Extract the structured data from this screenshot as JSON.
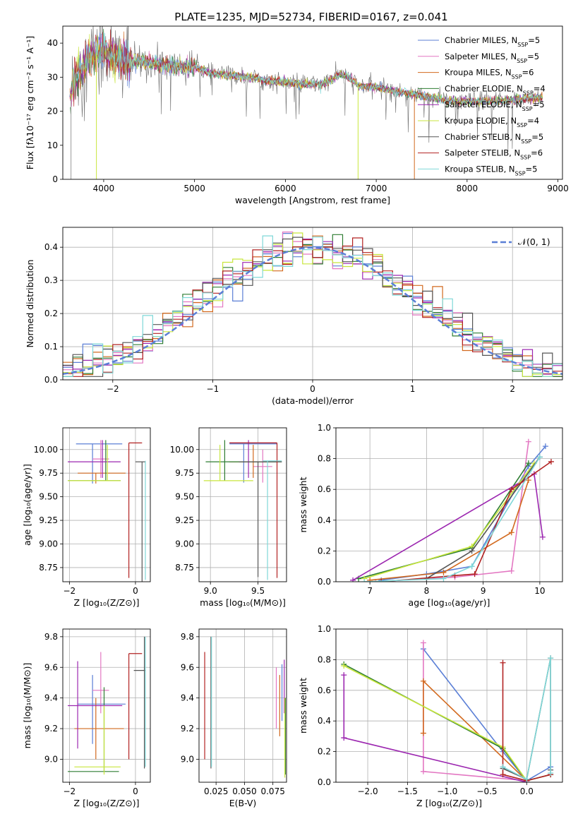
{
  "title": "PLATE=1235, MJD=52734, FIBERID=0167, z=0.041",
  "colors": [
    "#5b7fd6",
    "#e377c2",
    "#d2691e",
    "#2e7d32",
    "#9c27b0",
    "#c8e63c",
    "#555555",
    "#b22222",
    "#7fd8d8"
  ],
  "chart_data": [
    {
      "type": "line",
      "name": "spectrum",
      "xlabel": "wavelength [Angstrom, rest frame]",
      "ylabel": "Flux [fλ10⁻¹⁷ erg cm⁻² s⁻¹ A⁻¹]",
      "xlim": [
        3550,
        9050
      ],
      "ylim": [
        0,
        45
      ],
      "xticks": [
        4000,
        5000,
        6000,
        7000,
        8000,
        9000
      ],
      "yticks": [
        0,
        10,
        20,
        30,
        40
      ],
      "grid": false,
      "legend": "top-right",
      "series": [
        {
          "name": "Chabrier MILES, N_SSP=5",
          "label_html": "Chabrier MILES, N<tspan baseline-shift=\"sub\" font-size=\"8\">SSP</tspan>=5"
        },
        {
          "name": "Salpeter MILES, N_SSP=5",
          "label_html": "Salpeter MILES, N<tspan baseline-shift=\"sub\" font-size=\"8\">SSP</tspan>=5"
        },
        {
          "name": "Kroupa MILES, N_SSP=6",
          "label_html": "Kroupa MILES, N<tspan baseline-shift=\"sub\" font-size=\"8\">SSP</tspan>=6"
        },
        {
          "name": "Chabrier ELODIE, N_SSP=4",
          "label_html": "Chabrier ELODIE, N<tspan baseline-shift=\"sub\" font-size=\"8\">SSP</tspan>=4"
        },
        {
          "name": "Salpeter ELODIE, N_SSP=5",
          "label_html": "Salpeter ELODIE, N<tspan baseline-shift=\"sub\" font-size=\"8\">SSP</tspan>=5"
        },
        {
          "name": "Kroupa ELODIE, N_SSP=4",
          "label_html": "Kroupa ELODIE, N<tspan baseline-shift=\"sub\" font-size=\"8\">SSP</tspan>=4"
        },
        {
          "name": "Chabrier STELIB, N_SSP=5",
          "label_html": "Chabrier STELIB, N<tspan baseline-shift=\"sub\" font-size=\"8\">SSP</tspan>=5"
        },
        {
          "name": "Salpeter STELIB, N_SSP=6",
          "label_html": "Salpeter STELIB, N<tspan baseline-shift=\"sub\" font-size=\"8\">SSP</tspan>=6"
        },
        {
          "name": "Kroupa STELIB, N_SSP=5",
          "label_html": "Kroupa STELIB, N<tspan baseline-shift=\"sub\" font-size=\"8\">SSP</tspan>=5"
        }
      ],
      "continuum": [
        [
          3650,
          27
        ],
        [
          3700,
          31
        ],
        [
          3800,
          34
        ],
        [
          3900,
          37
        ],
        [
          4000,
          38
        ],
        [
          4100,
          36
        ],
        [
          4200,
          35
        ],
        [
          4400,
          34.5
        ],
        [
          4600,
          34
        ],
        [
          4800,
          33
        ],
        [
          5000,
          33
        ],
        [
          5200,
          31
        ],
        [
          5400,
          30.5
        ],
        [
          5600,
          30
        ],
        [
          5800,
          29
        ],
        [
          6000,
          28.5
        ],
        [
          6200,
          28
        ],
        [
          6400,
          28
        ],
        [
          6500,
          29
        ],
        [
          6600,
          31
        ],
        [
          6700,
          30
        ],
        [
          6800,
          27.5
        ],
        [
          7000,
          27
        ],
        [
          7200,
          26
        ],
        [
          7400,
          25
        ],
        [
          7600,
          24
        ],
        [
          7800,
          23
        ],
        [
          8000,
          23
        ],
        [
          8200,
          23
        ],
        [
          8400,
          23
        ],
        [
          8600,
          23.5
        ],
        [
          8800,
          24
        ]
      ]
    },
    {
      "type": "histogram",
      "name": "residuals",
      "xlabel": "(data-model)/error",
      "ylabel": "Normed distribution",
      "xlim": [
        -2.5,
        2.5
      ],
      "ylim": [
        0,
        0.46
      ],
      "xticks": [
        -2,
        -1,
        0,
        1,
        2
      ],
      "yticks": [
        0.0,
        0.1,
        0.2,
        0.3,
        0.4
      ],
      "grid": true,
      "legend": "top-right",
      "legend_entry": "𝒩(0, 1)",
      "bins": 50
    },
    {
      "type": "errorbar",
      "name": "age-vs-Z",
      "xlabel": "Z [log₁₀(Z/Z⊙)]",
      "ylabel": "age  [log₁₀(age/yr)]",
      "xlim": [
        -2.2,
        0.45
      ],
      "ylim": [
        8.6,
        10.23
      ],
      "xticks": [
        -2,
        0
      ],
      "yticks": [
        8.75,
        9.0,
        9.25,
        9.5,
        9.75,
        10.0
      ],
      "grid": true,
      "bars": [
        {
          "c": 0,
          "x": -1.3,
          "y": 10.06,
          "xe": [
            -1.8,
            -0.4
          ],
          "ye": [
            9.64,
            10.06
          ]
        },
        {
          "c": 1,
          "x": -1.05,
          "y": 9.9,
          "xe": [
            -1.3,
            -0.8
          ],
          "ye": [
            9.7,
            10.1
          ]
        },
        {
          "c": 2,
          "x": -1.2,
          "y": 9.75,
          "xe": [
            -1.75,
            -0.3
          ],
          "ye": [
            9.64,
            9.75
          ]
        },
        {
          "c": 3,
          "x": -0.9,
          "y": 9.67,
          "xe": [
            -2.05,
            -0.45
          ],
          "ye": [
            9.67,
            10.1
          ]
        },
        {
          "c": 4,
          "x": -1.0,
          "y": 9.87,
          "xe": [
            -2.05,
            -0.45
          ],
          "ye": [
            9.7,
            10.1
          ]
        },
        {
          "c": 5,
          "x": -0.85,
          "y": 9.67,
          "xe": [
            -2.05,
            -0.45
          ],
          "ye": [
            9.67,
            10.05
          ]
        },
        {
          "c": 6,
          "x": 0.2,
          "y": 9.87,
          "xe": [
            0.0,
            0.3
          ],
          "ye": [
            8.6,
            9.87
          ]
        },
        {
          "c": 7,
          "x": -0.2,
          "y": 10.07,
          "xe": [
            -0.2,
            0.2
          ],
          "ye": [
            8.64,
            10.07
          ]
        },
        {
          "c": 8,
          "x": 0.3,
          "y": 9.88,
          "xe": [
            0.3,
            0.3
          ],
          "ye": [
            8.62,
            9.88
          ]
        }
      ]
    },
    {
      "type": "errorbar",
      "name": "age-vs-mass",
      "xlabel": "mass [log₁₀(M/M⊙)]",
      "ylabel": "",
      "xlim": [
        8.88,
        9.8
      ],
      "ylim": [
        8.6,
        10.23
      ],
      "xticks": [
        9.0,
        9.5
      ],
      "yticks": [
        8.75,
        9.0,
        9.25,
        9.5,
        9.75,
        10.0
      ],
      "grid": true,
      "bars": [
        {
          "c": 0,
          "x": 9.35,
          "y": 10.06,
          "xe": [
            9.2,
            9.7
          ],
          "ye": [
            9.65,
            10.06
          ]
        },
        {
          "c": 1,
          "x": 9.55,
          "y": 9.82,
          "xe": [
            9.45,
            9.65
          ],
          "ye": [
            9.65,
            10.0
          ]
        },
        {
          "c": 2,
          "x": 9.45,
          "y": 9.87,
          "xe": [
            9.2,
            9.7
          ],
          "ye": [
            9.7,
            10.05
          ]
        },
        {
          "c": 3,
          "x": 9.15,
          "y": 9.87,
          "xe": [
            8.95,
            9.75
          ],
          "ye": [
            9.67,
            10.1
          ]
        },
        {
          "c": 4,
          "x": 9.4,
          "y": 10.07,
          "xe": [
            9.2,
            9.7
          ],
          "ye": [
            9.7,
            10.1
          ]
        },
        {
          "c": 5,
          "x": 9.1,
          "y": 9.67,
          "xe": [
            8.93,
            9.45
          ],
          "ye": [
            9.67,
            10.05
          ]
        },
        {
          "c": 6,
          "x": 9.5,
          "y": 9.87,
          "xe": [
            9.3,
            9.75
          ],
          "ye": [
            8.65,
            9.87
          ]
        },
        {
          "c": 7,
          "x": 9.7,
          "y": 10.07,
          "xe": [
            9.2,
            9.7
          ],
          "ye": [
            8.64,
            10.07
          ]
        },
        {
          "c": 8,
          "x": 9.6,
          "y": 9.88,
          "xe": [
            9.55,
            9.75
          ],
          "ye": [
            8.62,
            9.88
          ]
        }
      ]
    },
    {
      "type": "line",
      "name": "mass-weight-vs-age",
      "xlabel": "age  [log₁₀(age/yr)]",
      "ylabel": "mass weight",
      "xlim": [
        6.4,
        10.4
      ],
      "ylim": [
        0,
        1
      ],
      "xticks": [
        7,
        8,
        9,
        10
      ],
      "yticks": [
        0.0,
        0.2,
        0.4,
        0.6,
        0.8,
        1.0
      ],
      "grid": true,
      "series": [
        {
          "c": 0,
          "points": [
            [
              7.2,
              0.01
            ],
            [
              8.0,
              0.05
            ],
            [
              8.8,
              0.1
            ],
            [
              9.8,
              0.75
            ],
            [
              10.1,
              0.88
            ]
          ]
        },
        {
          "c": 1,
          "points": [
            [
              7.1,
              0.0
            ],
            [
              8.5,
              0.03
            ],
            [
              9.5,
              0.07
            ],
            [
              9.8,
              0.91
            ]
          ]
        },
        {
          "c": 2,
          "points": [
            [
              7.0,
              0.01
            ],
            [
              8.3,
              0.06
            ],
            [
              9.5,
              0.32
            ],
            [
              9.8,
              0.66
            ]
          ]
        },
        {
          "c": 3,
          "points": [
            [
              6.8,
              0.02
            ],
            [
              8.8,
              0.22
            ],
            [
              9.8,
              0.77
            ]
          ]
        },
        {
          "c": 4,
          "points": [
            [
              6.7,
              0.01
            ],
            [
              9.9,
              0.7
            ],
            [
              10.05,
              0.29
            ]
          ]
        },
        {
          "c": 5,
          "points": [
            [
              6.9,
              0.02
            ],
            [
              8.8,
              0.23
            ],
            [
              9.9,
              0.77
            ]
          ]
        },
        {
          "c": 6,
          "points": [
            [
              8.0,
              0.02
            ],
            [
              8.8,
              0.2
            ],
            [
              10.0,
              0.81
            ]
          ]
        },
        {
          "c": 7,
          "points": [
            [
              7.2,
              0.0
            ],
            [
              8.5,
              0.04
            ],
            [
              8.85,
              0.05
            ],
            [
              9.5,
              0.6
            ],
            [
              10.2,
              0.78
            ]
          ]
        },
        {
          "c": 8,
          "points": [
            [
              6.9,
              0.0
            ],
            [
              8.3,
              0.02
            ],
            [
              8.8,
              0.1
            ],
            [
              10.0,
              0.81
            ]
          ]
        }
      ]
    },
    {
      "type": "errorbar",
      "name": "mass-vs-Z",
      "xlabel": "Z [log₁₀(Z/Z⊙)]",
      "ylabel": "mass [log₁₀(M/M⊙)]",
      "xlim": [
        -2.2,
        0.45
      ],
      "ylim": [
        8.85,
        9.85
      ],
      "xticks": [
        -2,
        0
      ],
      "yticks": [
        9.0,
        9.2,
        9.4,
        9.6,
        9.8
      ],
      "grid": true,
      "bars": [
        {
          "c": 0,
          "x": -1.3,
          "y": 9.36,
          "xe": [
            -1.75,
            -0.3
          ],
          "ye": [
            9.1,
            9.55
          ]
        },
        {
          "c": 1,
          "x": -1.05,
          "y": 9.45,
          "xe": [
            -1.3,
            -0.8
          ],
          "ye": [
            9.3,
            9.7
          ]
        },
        {
          "c": 2,
          "x": -1.2,
          "y": 9.2,
          "xe": [
            -1.85,
            -0.35
          ],
          "ye": [
            9.0,
            9.4
          ]
        },
        {
          "c": 3,
          "x": -0.95,
          "y": 8.92,
          "xe": [
            -2.05,
            -0.5
          ],
          "ye": [
            8.92,
            9.47
          ]
        },
        {
          "c": 4,
          "x": -1.75,
          "y": 9.35,
          "xe": [
            -2.05,
            -0.4
          ],
          "ye": [
            9.07,
            9.64
          ]
        },
        {
          "c": 5,
          "x": -0.95,
          "y": 8.95,
          "xe": [
            -1.85,
            -0.45
          ],
          "ye": [
            8.9,
            9.35
          ]
        },
        {
          "c": 6,
          "x": 0.27,
          "y": 9.58,
          "xe": [
            -0.05,
            0.3
          ],
          "ye": [
            8.94,
            9.8
          ]
        },
        {
          "c": 7,
          "x": -0.2,
          "y": 9.69,
          "xe": [
            -0.2,
            0.2
          ],
          "ye": [
            9.0,
            9.69
          ]
        },
        {
          "c": 8,
          "x": 0.3,
          "y": 9.59,
          "xe": [
            0.3,
            0.3
          ],
          "ye": [
            8.95,
            9.8
          ]
        }
      ]
    },
    {
      "type": "errorbar",
      "name": "mass-vs-EBV",
      "xlabel": "E(B-V)",
      "ylabel": "",
      "xlim": [
        0.01,
        0.087
      ],
      "ylim": [
        8.85,
        9.85
      ],
      "xticks": [
        0.025,
        0.05,
        0.075
      ],
      "yticks": [
        9.0,
        9.2,
        9.4,
        9.6,
        9.8
      ],
      "grid": true,
      "bars": [
        {
          "c": 0,
          "x": 0.083,
          "ye": [
            9.25,
            9.62
          ]
        },
        {
          "c": 1,
          "x": 0.078,
          "ye": [
            9.2,
            9.6
          ]
        },
        {
          "c": 2,
          "x": 0.081,
          "ye": [
            9.15,
            9.55
          ]
        },
        {
          "c": 3,
          "x": 0.086,
          "ye": [
            8.9,
            9.4
          ]
        },
        {
          "c": 4,
          "x": 0.085,
          "ye": [
            9.3,
            9.65
          ]
        },
        {
          "c": 5,
          "x": 0.0855,
          "ye": [
            8.88,
            9.4
          ]
        },
        {
          "c": 6,
          "x": 0.0205,
          "ye": [
            8.94,
            9.8
          ]
        },
        {
          "c": 7,
          "x": 0.015,
          "ye": [
            9.0,
            9.7
          ]
        },
        {
          "c": 8,
          "x": 0.021,
          "ye": [
            8.95,
            9.8
          ]
        }
      ]
    },
    {
      "type": "line",
      "name": "mass-weight-vs-Z",
      "xlabel": "Z [log₁₀(Z/Z⊙)]",
      "ylabel": "mass weight",
      "xlim": [
        -2.4,
        0.45
      ],
      "ylim": [
        0,
        1
      ],
      "xticks": [
        -2.0,
        -1.5,
        -1.0,
        -0.5,
        0.0
      ],
      "yticks": [
        0.0,
        0.2,
        0.4,
        0.6,
        0.8,
        1.0
      ],
      "grid": true,
      "series": [
        {
          "c": 0,
          "points": [
            [
              -1.3,
              0.87
            ],
            [
              -0.3,
              0.2
            ],
            [
              0.0,
              0.01
            ],
            [
              0.3,
              0.1
            ]
          ]
        },
        {
          "c": 1,
          "points": [
            [
              -1.3,
              0.91
            ],
            [
              -1.3,
              0.07
            ],
            [
              0.0,
              0.01
            ]
          ]
        },
        {
          "c": 2,
          "points": [
            [
              -1.3,
              0.32
            ],
            [
              -1.3,
              0.66
            ],
            [
              0.0,
              0.01
            ]
          ]
        },
        {
          "c": 3,
          "points": [
            [
              -2.3,
              0.77
            ],
            [
              -0.3,
              0.22
            ],
            [
              0.0,
              0.01
            ],
            [
              0.3,
              0.05
            ]
          ]
        },
        {
          "c": 4,
          "points": [
            [
              -2.3,
              0.7
            ],
            [
              -2.3,
              0.29
            ],
            [
              0.0,
              0.0
            ]
          ]
        },
        {
          "c": 5,
          "points": [
            [
              -2.3,
              0.76
            ],
            [
              -0.3,
              0.23
            ],
            [
              0.0,
              0.01
            ]
          ]
        },
        {
          "c": 6,
          "points": [
            [
              -0.3,
              0.09
            ],
            [
              0.0,
              0.02
            ],
            [
              0.3,
              0.81
            ],
            [
              0.3,
              0.08
            ]
          ]
        },
        {
          "c": 7,
          "points": [
            [
              -0.3,
              0.78
            ],
            [
              -0.3,
              0.05
            ],
            [
              0.0,
              0.01
            ],
            [
              0.3,
              0.05
            ]
          ]
        },
        {
          "c": 8,
          "points": [
            [
              -0.3,
              0.1
            ],
            [
              0.0,
              0.02
            ],
            [
              0.3,
              0.81
            ],
            [
              0.3,
              0.06
            ]
          ]
        }
      ]
    }
  ]
}
